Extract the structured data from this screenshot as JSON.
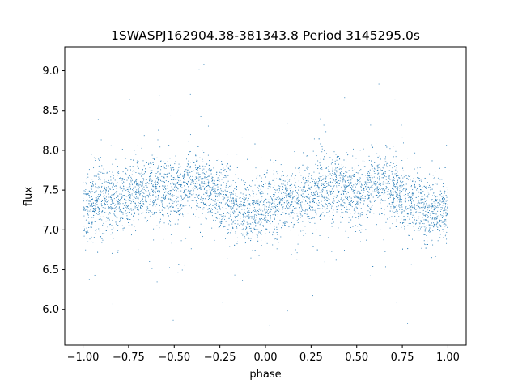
{
  "chart_data": {
    "type": "scatter",
    "title": "1SWASPJ162904.38-381343.8 Period 3145295.0s",
    "xlabel": "phase",
    "ylabel": "flux",
    "xlim": [
      -1.1,
      1.1
    ],
    "ylim": [
      5.55,
      9.3
    ],
    "xticks": [
      -1.0,
      -0.75,
      -0.5,
      -0.25,
      0.0,
      0.25,
      0.5,
      0.75,
      1.0
    ],
    "xtick_labels": [
      "−1.00",
      "−0.75",
      "−0.50",
      "−0.25",
      "0.00",
      "0.25",
      "0.50",
      "0.75",
      "1.00"
    ],
    "yticks": [
      6.0,
      6.5,
      7.0,
      7.5,
      8.0,
      8.5,
      9.0
    ],
    "ytick_labels": [
      "6.0",
      "6.5",
      "7.0",
      "7.5",
      "8.0",
      "8.5",
      "9.0"
    ],
    "grid": false,
    "marker_color": "#1f77b4",
    "series": [
      {
        "x_range": [
          -1.0,
          1.0
        ],
        "description_points": [
          {
            "phase": -1.0,
            "flux": 7.25
          },
          {
            "phase": -0.9,
            "flux": 7.35
          },
          {
            "phase": -0.8,
            "flux": 7.4
          },
          {
            "phase": -0.7,
            "flux": 7.5
          },
          {
            "phase": -0.6,
            "flux": 7.55
          },
          {
            "phase": -0.5,
            "flux": 7.45
          },
          {
            "phase": -0.4,
            "flux": 7.6
          },
          {
            "phase": -0.3,
            "flux": 7.5
          },
          {
            "phase": -0.2,
            "flux": 7.35
          },
          {
            "phase": -0.1,
            "flux": 7.2
          },
          {
            "phase": 0.0,
            "flux": 7.25
          },
          {
            "phase": 0.1,
            "flux": 7.35
          },
          {
            "phase": 0.2,
            "flux": 7.4
          },
          {
            "phase": 0.3,
            "flux": 7.5
          },
          {
            "phase": 0.4,
            "flux": 7.55
          },
          {
            "phase": 0.5,
            "flux": 7.45
          },
          {
            "phase": 0.6,
            "flux": 7.6
          },
          {
            "phase": 0.7,
            "flux": 7.5
          },
          {
            "phase": 0.8,
            "flux": 7.35
          },
          {
            "phase": 0.9,
            "flux": 7.2
          },
          {
            "phase": 1.0,
            "flux": 7.25
          }
        ]
      }
    ]
  }
}
